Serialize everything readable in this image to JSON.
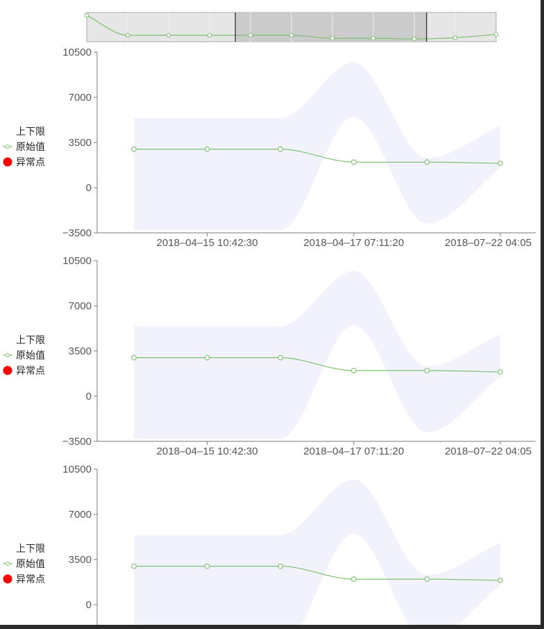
{
  "colors": {
    "line": "#7bc06f",
    "marker_fill": "#ffffff",
    "band": "#f2f2fd",
    "anomaly": "#ff0000",
    "axis": "#7a7a7a",
    "tick_text": "#555555",
    "navigator_bg": "#e6e6e6",
    "navigator_selected": "#c8c8c8",
    "navigator_border": "#444444"
  },
  "legend": {
    "band_label": "上下限",
    "line_label": "原始值",
    "anomaly_label": "异常点",
    "line_icon": "line-with-circle-marker-icon",
    "anomaly_icon": "red-dot-icon"
  },
  "navigator": {
    "values": [
      9500,
      2900,
      2900,
      2900,
      2900,
      2900,
      1900,
      1900,
      1700,
      2100,
      3200
    ],
    "selected_range_fraction": [
      0.363,
      0.83
    ]
  },
  "chart_data": [
    {
      "type": "line",
      "x_tick_labels": [
        "2018-04-15 10:42:30",
        "2018-04-17 07:11:20",
        "2018-07-22 04:05"
      ],
      "y_tick_labels": [
        "10500",
        "7000",
        "3500",
        "0",
        "-3500"
      ],
      "ylim": [
        -3500,
        10500
      ],
      "series": [
        {
          "name": "原始值",
          "values": [
            2980,
            2980,
            2980,
            1980,
            1980,
            1880
          ]
        }
      ],
      "band": {
        "name": "上下限",
        "upper": [
          5400,
          5400,
          5400,
          9700,
          2300,
          4800
        ],
        "lower": [
          -3300,
          -3300,
          -3300,
          5500,
          -2800,
          1500
        ]
      },
      "anomalies": []
    },
    {
      "type": "line",
      "x_tick_labels": [
        "2018-04-15 10:42:30",
        "2018-04-17 07:11:20",
        "2018-07-22 04:05"
      ],
      "y_tick_labels": [
        "10500",
        "7000",
        "3500",
        "0",
        "-3500"
      ],
      "ylim": [
        -3500,
        10500
      ],
      "series": [
        {
          "name": "原始值",
          "values": [
            2980,
            2980,
            2980,
            1980,
            1980,
            1880
          ]
        }
      ],
      "band": {
        "name": "上下限",
        "upper": [
          5400,
          5400,
          5400,
          9700,
          2300,
          4800
        ],
        "lower": [
          -3300,
          -3300,
          -3300,
          5500,
          -2800,
          1500
        ]
      },
      "anomalies": []
    },
    {
      "type": "line",
      "x_tick_labels": [],
      "y_tick_labels": [
        "10500",
        "7000",
        "3500",
        "0"
      ],
      "ylim": [
        -3500,
        10500
      ],
      "series": [
        {
          "name": "原始值",
          "values": [
            2980,
            2980,
            2980,
            1980,
            1980,
            1880
          ]
        }
      ],
      "band": {
        "name": "上下限",
        "upper": [
          5400,
          5400,
          5400,
          9700,
          2300,
          4800
        ],
        "lower": [
          -3300,
          -3300,
          -3300,
          5500,
          -2800,
          1500
        ]
      },
      "anomalies": []
    }
  ]
}
